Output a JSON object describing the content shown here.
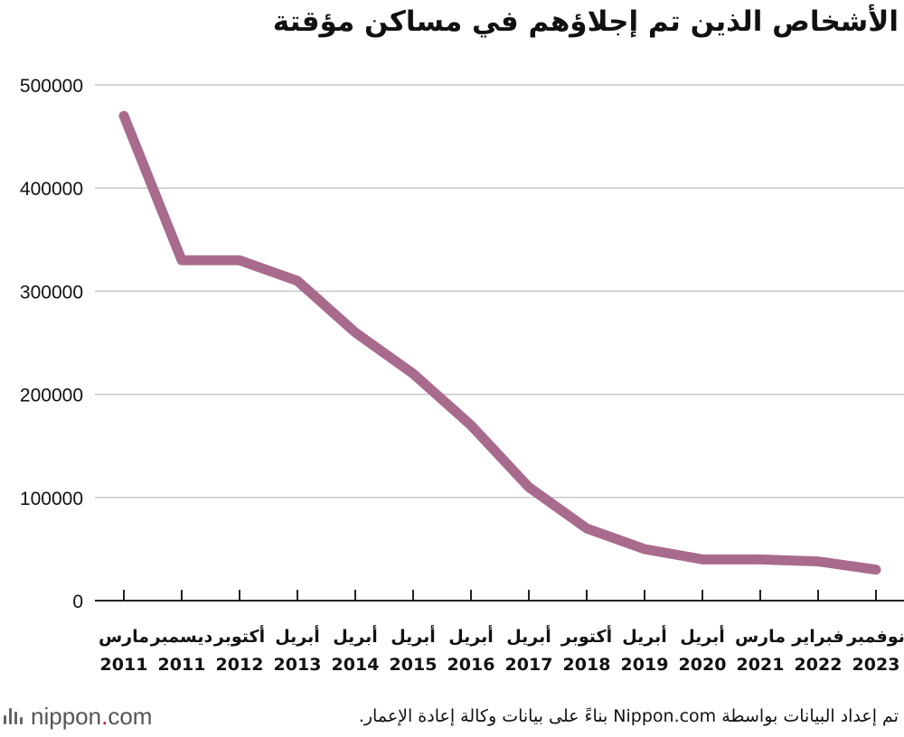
{
  "chart_data": {
    "type": "line",
    "title": "الأشخاص الذين تم إجلاؤهم في مساكن مؤقتة",
    "xlabel": "",
    "ylabel": "",
    "ylim": [
      0,
      500000
    ],
    "yticks": [
      "0",
      "100000",
      "200000",
      "300000",
      "400000",
      "500000"
    ],
    "grid": true,
    "categories": [
      {
        "line1": "مارس",
        "line2": "2011"
      },
      {
        "line1": "ديسمبر",
        "line2": "2011"
      },
      {
        "line1": "أكتوبر",
        "line2": "2012"
      },
      {
        "line1": "أبريل",
        "line2": "2013"
      },
      {
        "line1": "أبريل",
        "line2": "2014"
      },
      {
        "line1": "أبريل",
        "line2": "2015"
      },
      {
        "line1": "أبريل",
        "line2": "2016"
      },
      {
        "line1": "أبريل",
        "line2": "2017"
      },
      {
        "line1": "أكتوبر",
        "line2": "2018"
      },
      {
        "line1": "أبريل",
        "line2": "2019"
      },
      {
        "line1": "أبريل",
        "line2": "2020"
      },
      {
        "line1": "مارس",
        "line2": "2021"
      },
      {
        "line1": "فبراير",
        "line2": "2022"
      },
      {
        "line1": "نوفمبر",
        "line2": "2023"
      }
    ],
    "series": [
      {
        "name": "الأشخاص الذين تم إجلاؤهم",
        "values": [
          470000,
          330000,
          330000,
          310000,
          260000,
          220000,
          170000,
          110000,
          70000,
          50000,
          40000,
          40000,
          38000,
          30000
        ]
      }
    ],
    "line_color": "#a96b8d",
    "grid_color": "#c8c8c8",
    "axis_color": "#222222"
  },
  "footer": {
    "brand_name": "nippon",
    "brand_dot": ".",
    "brand_suffix": "com",
    "source": "تم إعداد البيانات بواسطة Nippon.com بناءً على بيانات وكالة إعادة الإعمار."
  }
}
